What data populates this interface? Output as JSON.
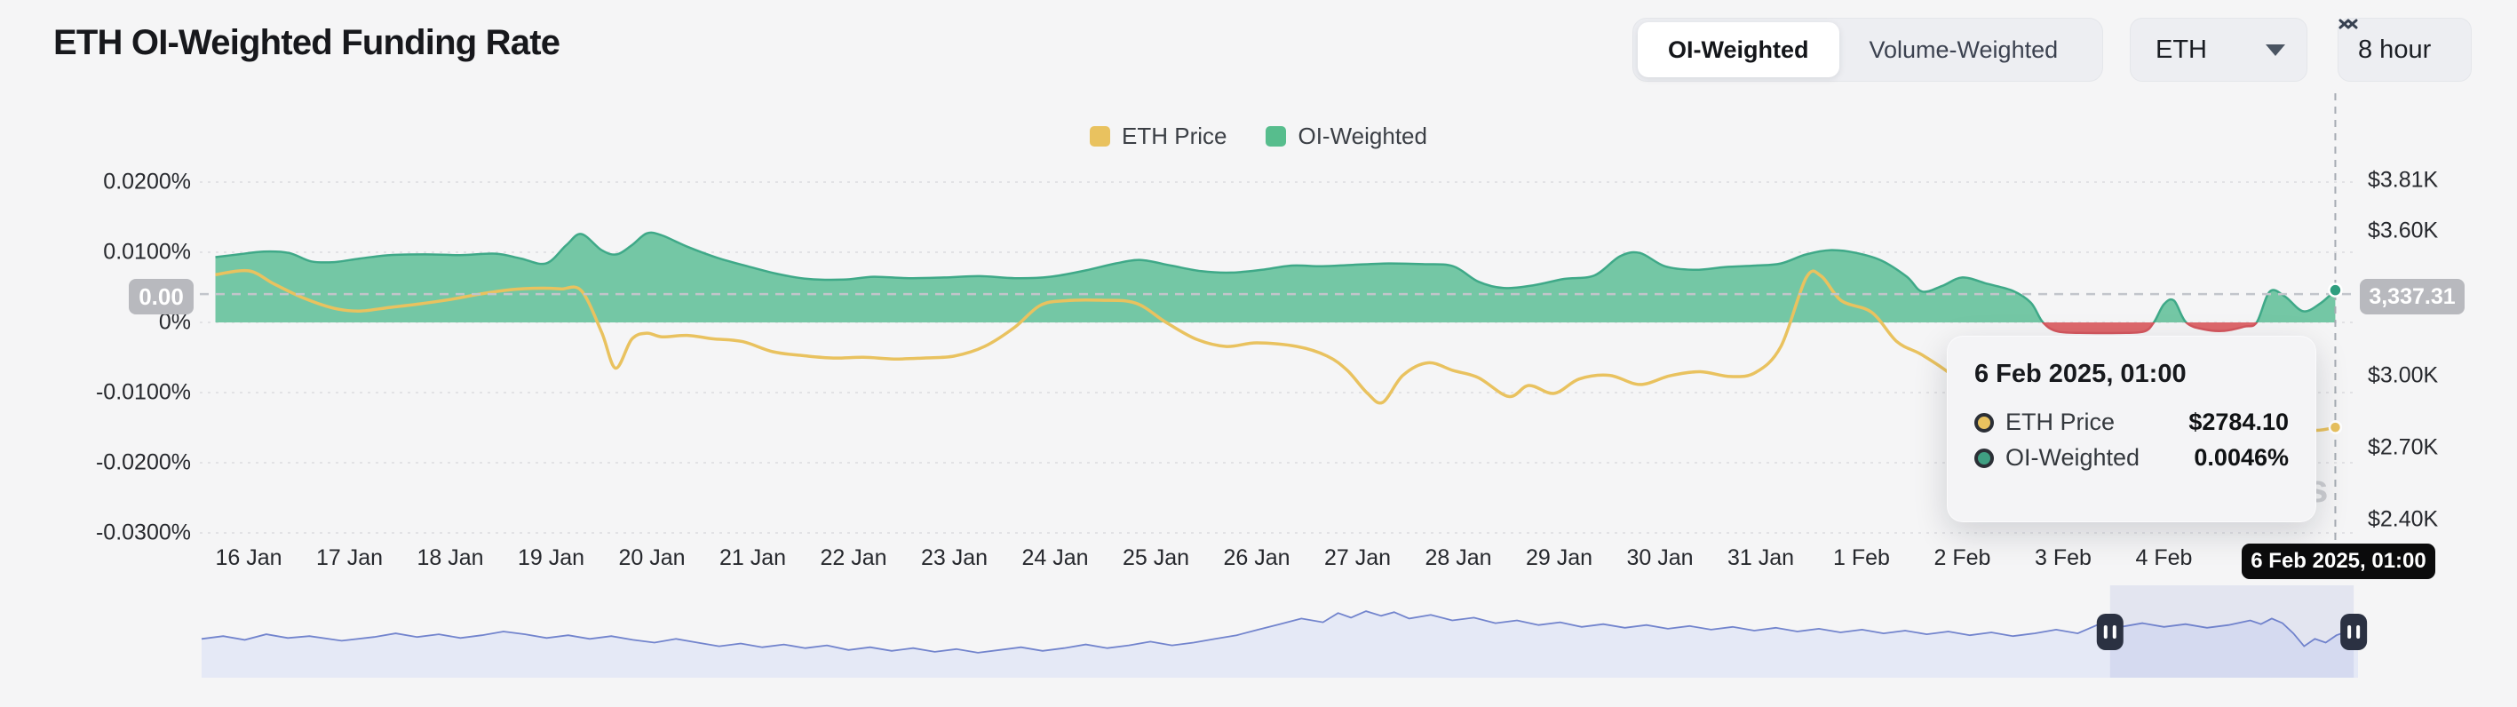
{
  "header": {
    "title": "ETH OI-Weighted Funding Rate",
    "weighting_toggle": {
      "options": [
        {
          "label": "OI-Weighted",
          "active": true
        },
        {
          "label": "Volume-Weighted",
          "active": false
        }
      ]
    },
    "symbol_select": {
      "value": "ETH"
    },
    "interval_select": {
      "value": "8 hour"
    }
  },
  "legend": {
    "items": [
      {
        "label": "ETH Price",
        "color": "#e9c25f"
      },
      {
        "label": "OI-Weighted",
        "color": "#57bd8d"
      }
    ]
  },
  "badges": {
    "funding_current": "0.00",
    "price_current": "3,337.31"
  },
  "crosshair": {
    "x_label": "6 Feb 2025, 01:00"
  },
  "tooltip": {
    "title": "6 Feb 2025, 01:00",
    "rows": [
      {
        "name": "ETH Price",
        "value": "$2784.10",
        "color": "#e9c25f"
      },
      {
        "name": "OI-Weighted",
        "value": "0.0046%",
        "color": "#3f9f82"
      }
    ]
  },
  "watermark_visible_text": "s",
  "chart_data": {
    "type": "area",
    "subtype": "dual-axis time series: funding-rate area (left %) + price line (right USD) + range navigator",
    "title": "ETH OI-Weighted Funding Rate",
    "colors": {
      "funding_positive_fill": "#74c7a5",
      "funding_positive_line": "#3fa988",
      "funding_negative_fill": "#de686c",
      "funding_negative_line": "#d4575e",
      "price_line": "#e9c25f",
      "navigator_line": "#7284cd",
      "navigator_fill": "#e5e9f6",
      "grid": "#e2e2e5",
      "crosshair": "#a6abb3"
    },
    "x_axis": {
      "unit": "days since 16 Jan 2025 00:00",
      "tick_labels": [
        "16 Jan",
        "17 Jan",
        "18 Jan",
        "19 Jan",
        "20 Jan",
        "21 Jan",
        "22 Jan",
        "23 Jan",
        "24 Jan",
        "25 Jan",
        "26 Jan",
        "27 Jan",
        "28 Jan",
        "29 Jan",
        "30 Jan",
        "31 Jan",
        "1 Feb",
        "2 Feb",
        "3 Feb",
        "4 Feb"
      ],
      "grid": false
    },
    "y_left": {
      "name": "Funding rate",
      "unit": "%",
      "ticks": [
        {
          "label": "0.0200%",
          "value": 0.02
        },
        {
          "label": "0.0100%",
          "value": 0.01
        },
        {
          "label": "0%",
          "value": 0
        },
        {
          "label": "-0.0100%",
          "value": -0.01
        },
        {
          "label": "-0.0200%",
          "value": -0.02
        },
        {
          "label": "-0.0300%",
          "value": -0.03
        }
      ],
      "range": [
        -0.033,
        0.021
      ],
      "grid": true
    },
    "y_right": {
      "name": "ETH price",
      "unit": "USD",
      "ticks": [
        {
          "label": "$3.81K",
          "value": 3810
        },
        {
          "label": "$3.60K",
          "value": 3600
        },
        {
          "label": "$3.00K",
          "value": 3000
        },
        {
          "label": "$2.70K",
          "value": 2700
        },
        {
          "label": "$2.40K",
          "value": 2400
        }
      ],
      "range": [
        2300,
        3810
      ],
      "grid": false
    },
    "current_value_line": {
      "price": 3337.31,
      "price_display": "3,337.31",
      "funding_display": "0.00",
      "style": "dashed"
    },
    "crosshair_point": {
      "time": "6 Feb 2025, 01:00",
      "day": 20.7,
      "eth_price": 2784.1,
      "oi_weighted_pct": 0.0046
    },
    "series": [
      {
        "name": "OI-Weighted",
        "axis": "left",
        "unit": "%",
        "points": [
          [
            -0.33,
            0.0093
          ],
          [
            -0.1,
            0.0097
          ],
          [
            0.15,
            0.0101
          ],
          [
            0.4,
            0.0099
          ],
          [
            0.62,
            0.0087
          ],
          [
            0.85,
            0.0086
          ],
          [
            1.1,
            0.0091
          ],
          [
            1.4,
            0.0096
          ],
          [
            1.75,
            0.0097
          ],
          [
            2.1,
            0.0096
          ],
          [
            2.45,
            0.0098
          ],
          [
            2.7,
            0.0091
          ],
          [
            2.95,
            0.0084
          ],
          [
            3.15,
            0.011
          ],
          [
            3.3,
            0.0126
          ],
          [
            3.5,
            0.0103
          ],
          [
            3.65,
            0.0097
          ],
          [
            3.8,
            0.011
          ],
          [
            3.95,
            0.0127
          ],
          [
            4.1,
            0.0124
          ],
          [
            4.35,
            0.0108
          ],
          [
            4.65,
            0.0092
          ],
          [
            4.95,
            0.008
          ],
          [
            5.25,
            0.0069
          ],
          [
            5.55,
            0.0062
          ],
          [
            5.9,
            0.0061
          ],
          [
            6.2,
            0.0065
          ],
          [
            6.55,
            0.0063
          ],
          [
            6.9,
            0.0064
          ],
          [
            7.25,
            0.0066
          ],
          [
            7.6,
            0.0063
          ],
          [
            7.95,
            0.0065
          ],
          [
            8.3,
            0.0074
          ],
          [
            8.6,
            0.0084
          ],
          [
            8.85,
            0.0089
          ],
          [
            9.15,
            0.0081
          ],
          [
            9.45,
            0.0073
          ],
          [
            9.75,
            0.0071
          ],
          [
            10.05,
            0.0075
          ],
          [
            10.35,
            0.0081
          ],
          [
            10.65,
            0.008
          ],
          [
            10.95,
            0.0082
          ],
          [
            11.3,
            0.0084
          ],
          [
            11.65,
            0.0083
          ],
          [
            11.95,
            0.008
          ],
          [
            12.2,
            0.0058
          ],
          [
            12.45,
            0.0049
          ],
          [
            12.75,
            0.0053
          ],
          [
            13.05,
            0.0062
          ],
          [
            13.35,
            0.0067
          ],
          [
            13.6,
            0.0094
          ],
          [
            13.8,
            0.0099
          ],
          [
            14.05,
            0.008
          ],
          [
            14.35,
            0.0075
          ],
          [
            14.65,
            0.0079
          ],
          [
            14.95,
            0.0081
          ],
          [
            15.2,
            0.0084
          ],
          [
            15.45,
            0.0097
          ],
          [
            15.7,
            0.0103
          ],
          [
            15.95,
            0.0099
          ],
          [
            16.2,
            0.0088
          ],
          [
            16.45,
            0.0065
          ],
          [
            16.6,
            0.0044
          ],
          [
            16.8,
            0.0052
          ],
          [
            17.0,
            0.0064
          ],
          [
            17.25,
            0.0055
          ],
          [
            17.5,
            0.0045
          ],
          [
            17.68,
            0.0028
          ],
          [
            17.8,
            0
          ],
          [
            17.95,
            -0.0013
          ],
          [
            18.25,
            -0.0015
          ],
          [
            18.55,
            -0.0015
          ],
          [
            18.8,
            -0.0013
          ],
          [
            18.9,
            0
          ],
          [
            19.0,
            0.0026
          ],
          [
            19.1,
            0.0031
          ],
          [
            19.22,
            0
          ],
          [
            19.4,
            -0.001
          ],
          [
            19.6,
            -0.0012
          ],
          [
            19.8,
            -0.0006
          ],
          [
            19.92,
            0
          ],
          [
            20.05,
            0.0044
          ],
          [
            20.2,
            0.0037
          ],
          [
            20.38,
            0.0016
          ],
          [
            20.55,
            0.0027
          ],
          [
            20.7,
            0.0046
          ]
        ]
      },
      {
        "name": "ETH Price",
        "axis": "right",
        "unit": "USD",
        "points": [
          [
            -0.33,
            3418
          ],
          [
            0,
            3434
          ],
          [
            0.25,
            3380
          ],
          [
            0.55,
            3320
          ],
          [
            0.85,
            3278
          ],
          [
            1.1,
            3267
          ],
          [
            1.4,
            3282
          ],
          [
            1.7,
            3297
          ],
          [
            2.0,
            3315
          ],
          [
            2.3,
            3338
          ],
          [
            2.6,
            3356
          ],
          [
            2.9,
            3362
          ],
          [
            3.1,
            3359
          ],
          [
            3.3,
            3352
          ],
          [
            3.5,
            3180
          ],
          [
            3.64,
            3030
          ],
          [
            3.8,
            3150
          ],
          [
            3.95,
            3175
          ],
          [
            4.1,
            3160
          ],
          [
            4.35,
            3166
          ],
          [
            4.6,
            3152
          ],
          [
            4.9,
            3140
          ],
          [
            5.2,
            3098
          ],
          [
            5.5,
            3082
          ],
          [
            5.8,
            3072
          ],
          [
            6.1,
            3075
          ],
          [
            6.4,
            3068
          ],
          [
            6.7,
            3072
          ],
          [
            7.0,
            3080
          ],
          [
            7.3,
            3120
          ],
          [
            7.6,
            3200
          ],
          [
            7.85,
            3290
          ],
          [
            8.1,
            3310
          ],
          [
            8.45,
            3312
          ],
          [
            8.8,
            3300
          ],
          [
            9.1,
            3220
          ],
          [
            9.4,
            3150
          ],
          [
            9.7,
            3120
          ],
          [
            10.0,
            3135
          ],
          [
            10.4,
            3120
          ],
          [
            10.7,
            3080
          ],
          [
            10.9,
            3020
          ],
          [
            11.1,
            2925
          ],
          [
            11.25,
            2888
          ],
          [
            11.45,
            3000
          ],
          [
            11.7,
            3052
          ],
          [
            11.95,
            3020
          ],
          [
            12.2,
            2990
          ],
          [
            12.5,
            2912
          ],
          [
            12.7,
            2958
          ],
          [
            12.95,
            2925
          ],
          [
            13.2,
            2985
          ],
          [
            13.5,
            3000
          ],
          [
            13.8,
            2962
          ],
          [
            14.1,
            2998
          ],
          [
            14.4,
            3015
          ],
          [
            14.7,
            2995
          ],
          [
            14.95,
            3012
          ],
          [
            15.2,
            3120
          ],
          [
            15.45,
            3405
          ],
          [
            15.6,
            3412
          ],
          [
            15.8,
            3310
          ],
          [
            16.1,
            3262
          ],
          [
            16.35,
            3140
          ],
          [
            16.6,
            3085
          ],
          [
            16.9,
            3000
          ],
          [
            17.2,
            2880
          ],
          [
            17.5,
            2815
          ],
          [
            17.8,
            2740
          ],
          [
            18.05,
            2672
          ],
          [
            18.3,
            2628
          ],
          [
            18.55,
            2680
          ],
          [
            18.8,
            2760
          ],
          [
            19.05,
            2812
          ],
          [
            19.3,
            2792
          ],
          [
            19.55,
            2752
          ],
          [
            19.8,
            2742
          ],
          [
            20.05,
            2788
          ],
          [
            20.3,
            2796
          ],
          [
            20.5,
            2772
          ],
          [
            20.7,
            2784.1
          ]
        ]
      }
    ],
    "navigator": {
      "selection": {
        "from_frac": 0.885,
        "to_frac": 0.998
      },
      "points": [
        [
          0,
          0.58
        ],
        [
          0.01,
          0.55
        ],
        [
          0.02,
          0.59
        ],
        [
          0.03,
          0.53
        ],
        [
          0.04,
          0.57
        ],
        [
          0.05,
          0.55
        ],
        [
          0.065,
          0.6
        ],
        [
          0.08,
          0.56
        ],
        [
          0.09,
          0.52
        ],
        [
          0.1,
          0.56
        ],
        [
          0.11,
          0.53
        ],
        [
          0.12,
          0.57
        ],
        [
          0.13,
          0.54
        ],
        [
          0.14,
          0.5
        ],
        [
          0.15,
          0.53
        ],
        [
          0.16,
          0.57
        ],
        [
          0.17,
          0.54
        ],
        [
          0.18,
          0.58
        ],
        [
          0.19,
          0.55
        ],
        [
          0.2,
          0.59
        ],
        [
          0.21,
          0.62
        ],
        [
          0.22,
          0.58
        ],
        [
          0.23,
          0.62
        ],
        [
          0.24,
          0.66
        ],
        [
          0.25,
          0.63
        ],
        [
          0.26,
          0.67
        ],
        [
          0.27,
          0.64
        ],
        [
          0.28,
          0.68
        ],
        [
          0.29,
          0.65
        ],
        [
          0.3,
          0.7
        ],
        [
          0.31,
          0.67
        ],
        [
          0.32,
          0.71
        ],
        [
          0.33,
          0.68
        ],
        [
          0.34,
          0.72
        ],
        [
          0.35,
          0.69
        ],
        [
          0.36,
          0.73
        ],
        [
          0.37,
          0.7
        ],
        [
          0.38,
          0.67
        ],
        [
          0.39,
          0.71
        ],
        [
          0.4,
          0.68
        ],
        [
          0.41,
          0.64
        ],
        [
          0.42,
          0.68
        ],
        [
          0.43,
          0.65
        ],
        [
          0.44,
          0.61
        ],
        [
          0.45,
          0.65
        ],
        [
          0.46,
          0.62
        ],
        [
          0.47,
          0.58
        ],
        [
          0.48,
          0.54
        ],
        [
          0.49,
          0.48
        ],
        [
          0.5,
          0.42
        ],
        [
          0.51,
          0.36
        ],
        [
          0.52,
          0.4
        ],
        [
          0.527,
          0.3
        ],
        [
          0.533,
          0.35
        ],
        [
          0.54,
          0.28
        ],
        [
          0.547,
          0.33
        ],
        [
          0.553,
          0.29
        ],
        [
          0.56,
          0.36
        ],
        [
          0.57,
          0.32
        ],
        [
          0.58,
          0.38
        ],
        [
          0.59,
          0.35
        ],
        [
          0.6,
          0.41
        ],
        [
          0.61,
          0.38
        ],
        [
          0.62,
          0.43
        ],
        [
          0.63,
          0.4
        ],
        [
          0.64,
          0.45
        ],
        [
          0.65,
          0.42
        ],
        [
          0.66,
          0.46
        ],
        [
          0.67,
          0.43
        ],
        [
          0.68,
          0.47
        ],
        [
          0.69,
          0.44
        ],
        [
          0.7,
          0.48
        ],
        [
          0.71,
          0.45
        ],
        [
          0.72,
          0.49
        ],
        [
          0.73,
          0.46
        ],
        [
          0.74,
          0.5
        ],
        [
          0.75,
          0.47
        ],
        [
          0.76,
          0.51
        ],
        [
          0.77,
          0.48
        ],
        [
          0.78,
          0.52
        ],
        [
          0.79,
          0.49
        ],
        [
          0.8,
          0.53
        ],
        [
          0.81,
          0.5
        ],
        [
          0.82,
          0.54
        ],
        [
          0.83,
          0.51
        ],
        [
          0.84,
          0.55
        ],
        [
          0.85,
          0.52
        ],
        [
          0.86,
          0.48
        ],
        [
          0.87,
          0.52
        ],
        [
          0.88,
          0.42
        ],
        [
          0.89,
          0.45
        ],
        [
          0.9,
          0.41
        ],
        [
          0.91,
          0.45
        ],
        [
          0.92,
          0.42
        ],
        [
          0.93,
          0.46
        ],
        [
          0.94,
          0.43
        ],
        [
          0.95,
          0.38
        ],
        [
          0.955,
          0.42
        ],
        [
          0.96,
          0.36
        ],
        [
          0.965,
          0.41
        ],
        [
          0.97,
          0.52
        ],
        [
          0.975,
          0.66
        ],
        [
          0.98,
          0.58
        ],
        [
          0.985,
          0.62
        ],
        [
          0.99,
          0.54
        ],
        [
          0.995,
          0.5
        ],
        [
          1,
          0.49
        ]
      ]
    }
  }
}
